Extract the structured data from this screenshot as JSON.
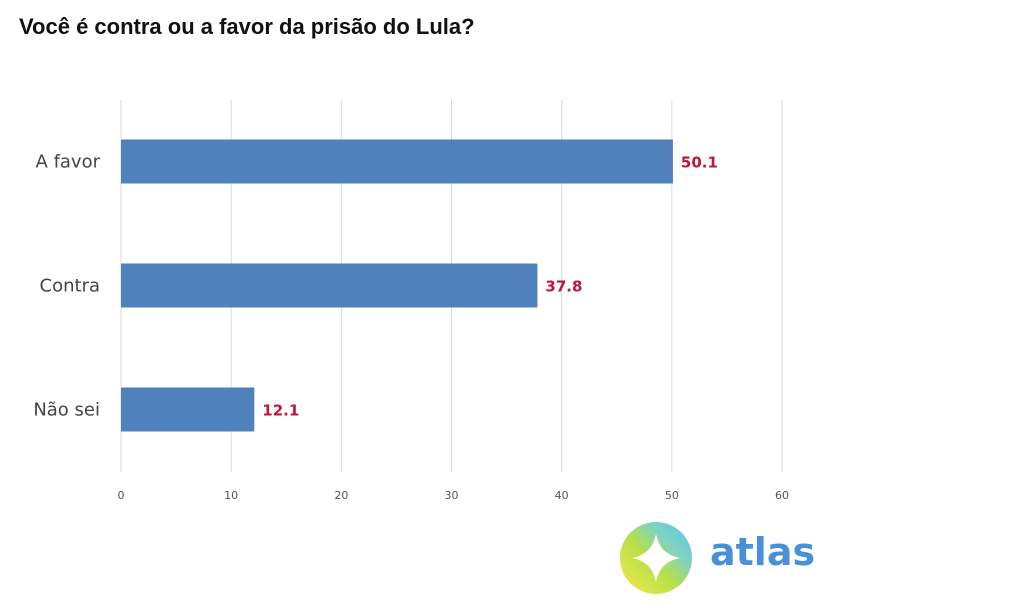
{
  "chart_data": {
    "type": "bar",
    "orientation": "horizontal",
    "title": "Você é contra ou a favor da prisão do Lula?",
    "categories": [
      "A favor",
      "Contra",
      "Não sei"
    ],
    "values": [
      50.1,
      37.8,
      12.1
    ],
    "value_labels": [
      "50.1",
      "37.8",
      "12.1"
    ],
    "xlim": [
      0,
      60
    ],
    "x_ticks": [
      "0",
      "10",
      "20",
      "30",
      "40",
      "50",
      "60"
    ],
    "xlabel": "",
    "ylabel": "",
    "grid": "vertical",
    "legend": "none",
    "colors": {
      "bar": "#4f81bd",
      "value_label": "#c0143c",
      "grid": "#d9d9d9"
    }
  },
  "brand": {
    "name": "atlas",
    "text_color": "#4a90d9",
    "logo_colors": [
      "#5bc4f0",
      "#b7e04a",
      "#f6e84a",
      "#7ed3c0"
    ]
  }
}
